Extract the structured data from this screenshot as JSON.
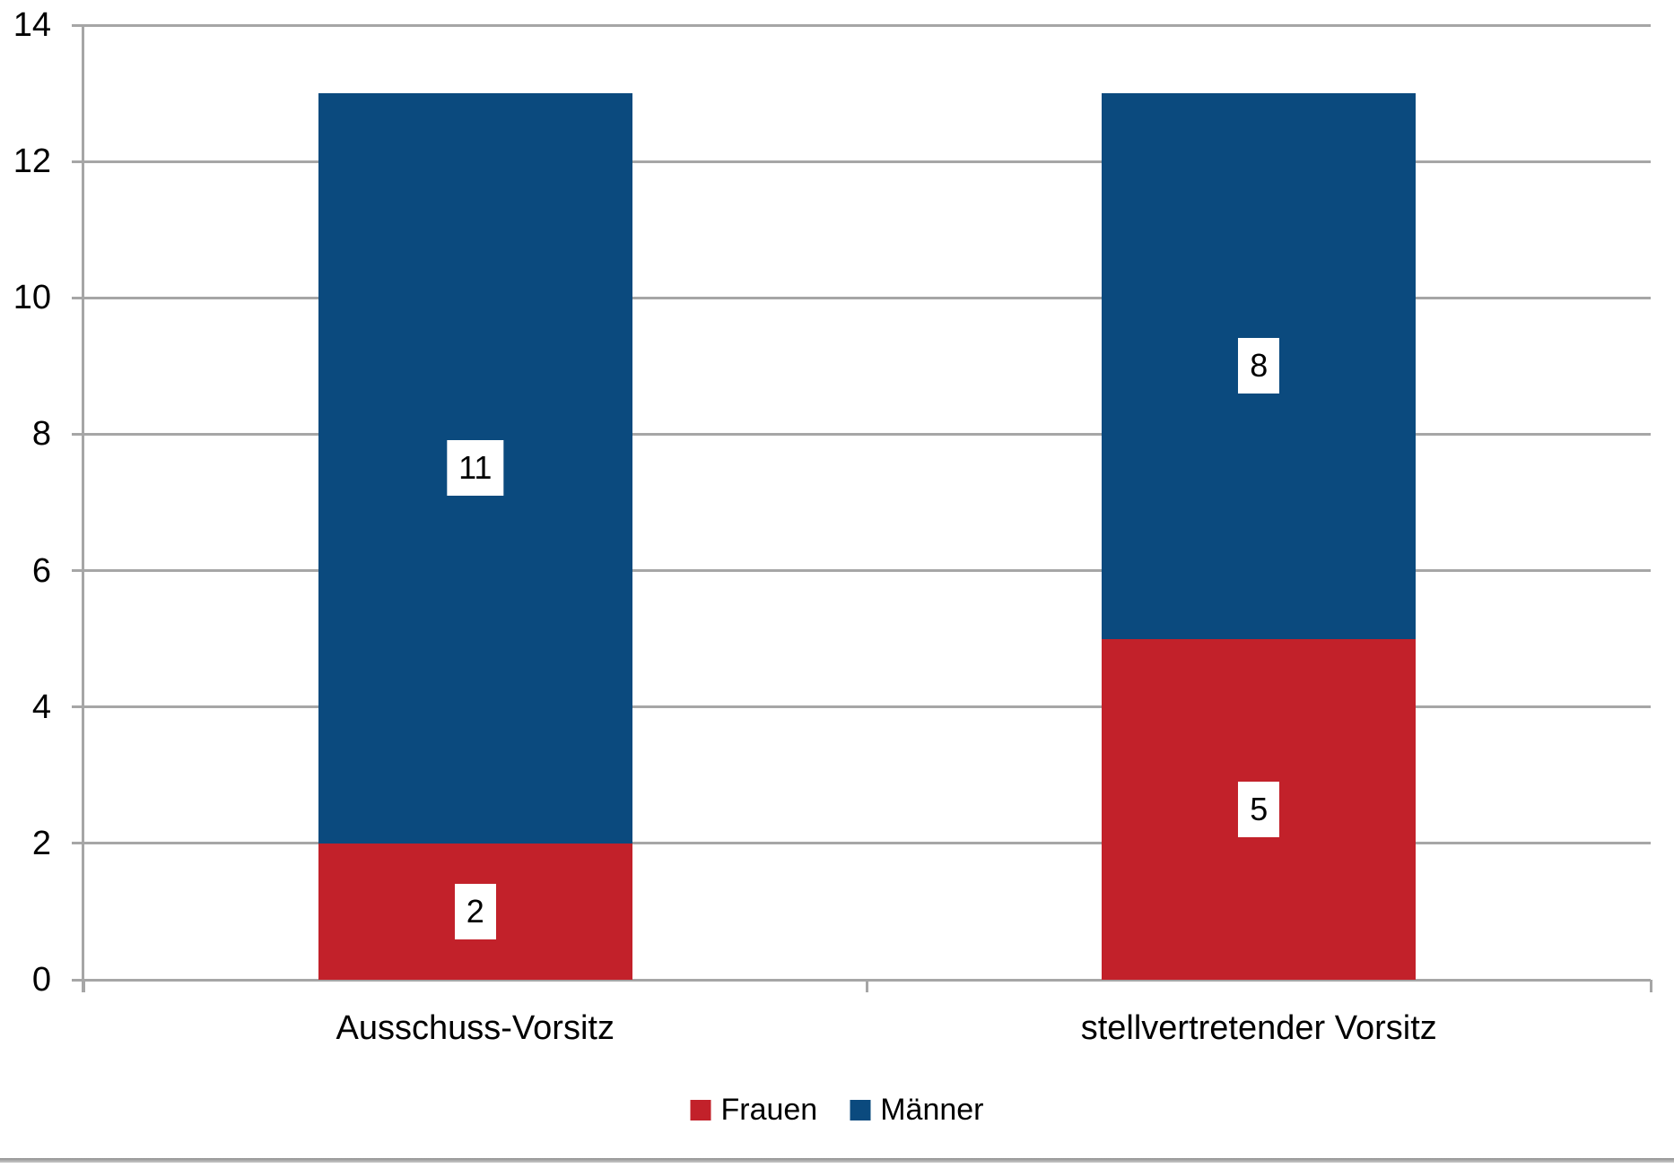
{
  "chart_data": {
    "type": "bar",
    "stacked": true,
    "title": "",
    "xlabel": "",
    "ylabel": "",
    "categories": [
      "Ausschuss-Vorsitz",
      "stellvertretender Vorsitz"
    ],
    "series": [
      {
        "name": "Frauen",
        "color": "#c2212a",
        "values": [
          2,
          5
        ]
      },
      {
        "name": "Männer",
        "color": "#0b4a7e",
        "values": [
          11,
          8
        ]
      }
    ],
    "totals": [
      13,
      13
    ],
    "ylim": [
      0,
      14
    ],
    "yticks": [
      0,
      2,
      4,
      6,
      8,
      10,
      12,
      14
    ],
    "grid": true,
    "gridline_color": "#a6a6a6",
    "axis_color": "#a6a6a6",
    "data_labels": true,
    "data_label_bg": "#ffffff",
    "data_label_color": "#000000",
    "legend_position": "bottom"
  }
}
